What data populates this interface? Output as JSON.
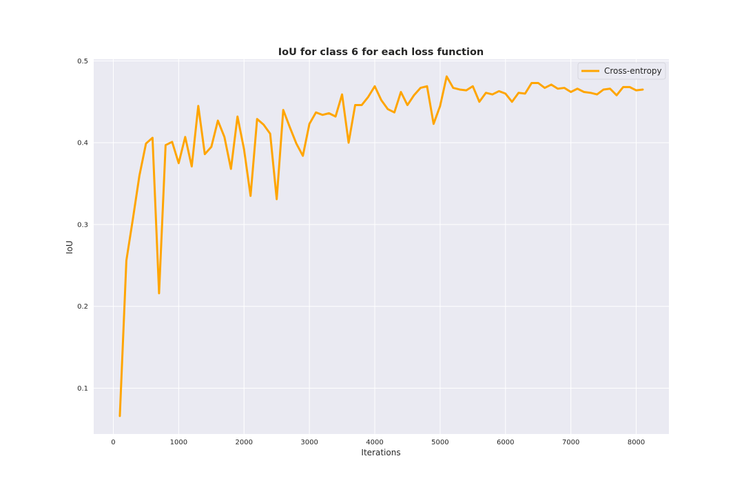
{
  "chart_data": {
    "type": "line",
    "title": "IoU for class 6 for each loss function",
    "xlabel": "Iterations",
    "ylabel": "IoU",
    "xlim": [
      -300,
      8500
    ],
    "ylim": [
      0.044,
      0.502
    ],
    "xticks": [
      0,
      1000,
      2000,
      3000,
      4000,
      5000,
      6000,
      7000,
      8000
    ],
    "yticks": [
      0.1,
      0.2,
      0.3,
      0.4,
      0.5
    ],
    "grid": true,
    "legend_position": "top-right",
    "series": [
      {
        "name": "Cross-entropy",
        "color": "#FFA500",
        "x": [
          100,
          200,
          300,
          400,
          500,
          600,
          700,
          800,
          900,
          1000,
          1100,
          1200,
          1300,
          1400,
          1500,
          1600,
          1700,
          1800,
          1900,
          2000,
          2100,
          2200,
          2300,
          2400,
          2500,
          2600,
          2700,
          2800,
          2900,
          3000,
          3100,
          3200,
          3300,
          3400,
          3500,
          3600,
          3700,
          3800,
          3900,
          4000,
          4100,
          4200,
          4300,
          4400,
          4500,
          4600,
          4700,
          4800,
          4900,
          5000,
          5100,
          5200,
          5300,
          5400,
          5500,
          5600,
          5700,
          5800,
          5900,
          6000,
          6100,
          6200,
          6300,
          6400,
          6500,
          6600,
          6700,
          6800,
          6900,
          7000,
          7100,
          7200,
          7300,
          7400,
          7500,
          7600,
          7700,
          7800,
          7900,
          8000,
          8100
        ],
        "y": [
          0.066,
          0.256,
          0.307,
          0.36,
          0.399,
          0.406,
          0.216,
          0.397,
          0.401,
          0.375,
          0.407,
          0.371,
          0.445,
          0.386,
          0.395,
          0.427,
          0.407,
          0.368,
          0.432,
          0.392,
          0.335,
          0.429,
          0.422,
          0.411,
          0.331,
          0.44,
          0.419,
          0.399,
          0.384,
          0.423,
          0.437,
          0.434,
          0.436,
          0.432,
          0.459,
          0.4,
          0.446,
          0.446,
          0.456,
          0.469,
          0.452,
          0.441,
          0.437,
          0.462,
          0.446,
          0.458,
          0.467,
          0.469,
          0.423,
          0.445,
          0.481,
          0.467,
          0.465,
          0.464,
          0.469,
          0.45,
          0.461,
          0.459,
          0.463,
          0.46,
          0.45,
          0.461,
          0.46,
          0.473,
          0.473,
          0.467,
          0.471,
          0.466,
          0.467,
          0.462,
          0.466,
          0.462,
          0.461,
          0.459,
          0.465,
          0.466,
          0.458,
          0.468,
          0.468,
          0.464,
          0.465
        ]
      }
    ]
  }
}
